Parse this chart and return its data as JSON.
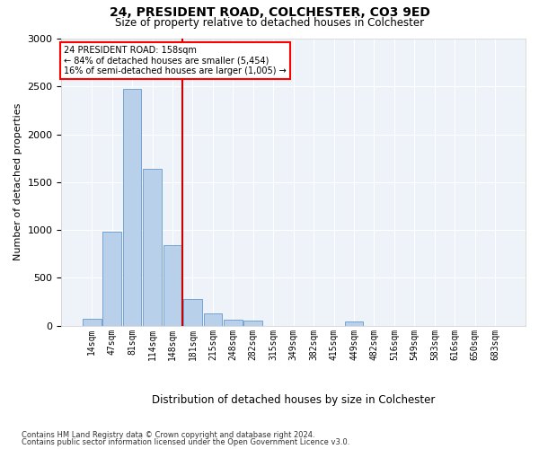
{
  "title1": "24, PRESIDENT ROAD, COLCHESTER, CO3 9ED",
  "title2": "Size of property relative to detached houses in Colchester",
  "xlabel": "Distribution of detached houses by size in Colchester",
  "ylabel": "Number of detached properties",
  "footnote1": "Contains HM Land Registry data © Crown copyright and database right 2024.",
  "footnote2": "Contains public sector information licensed under the Open Government Licence v3.0.",
  "annotation_title": "24 PRESIDENT ROAD: 158sqm",
  "annotation_line1": "← 84% of detached houses are smaller (5,454)",
  "annotation_line2": "16% of semi-detached houses are larger (1,005) →",
  "bar_color": "#b8d0ea",
  "bar_edge_color": "#6699cc",
  "vline_color": "#cc0000",
  "vline_x": 4.5,
  "categories": [
    "14sqm",
    "47sqm",
    "81sqm",
    "114sqm",
    "148sqm",
    "181sqm",
    "215sqm",
    "248sqm",
    "282sqm",
    "315sqm",
    "349sqm",
    "382sqm",
    "415sqm",
    "449sqm",
    "482sqm",
    "516sqm",
    "549sqm",
    "583sqm",
    "616sqm",
    "650sqm",
    "683sqm"
  ],
  "values": [
    70,
    980,
    2470,
    1640,
    840,
    275,
    130,
    58,
    55,
    0,
    0,
    0,
    0,
    45,
    0,
    0,
    0,
    0,
    0,
    0,
    0
  ],
  "ylim": [
    0,
    3000
  ],
  "yticks": [
    0,
    500,
    1000,
    1500,
    2000,
    2500,
    3000
  ],
  "figsize": [
    6.0,
    5.0
  ],
  "dpi": 100,
  "bg_color": "#eef2f9"
}
